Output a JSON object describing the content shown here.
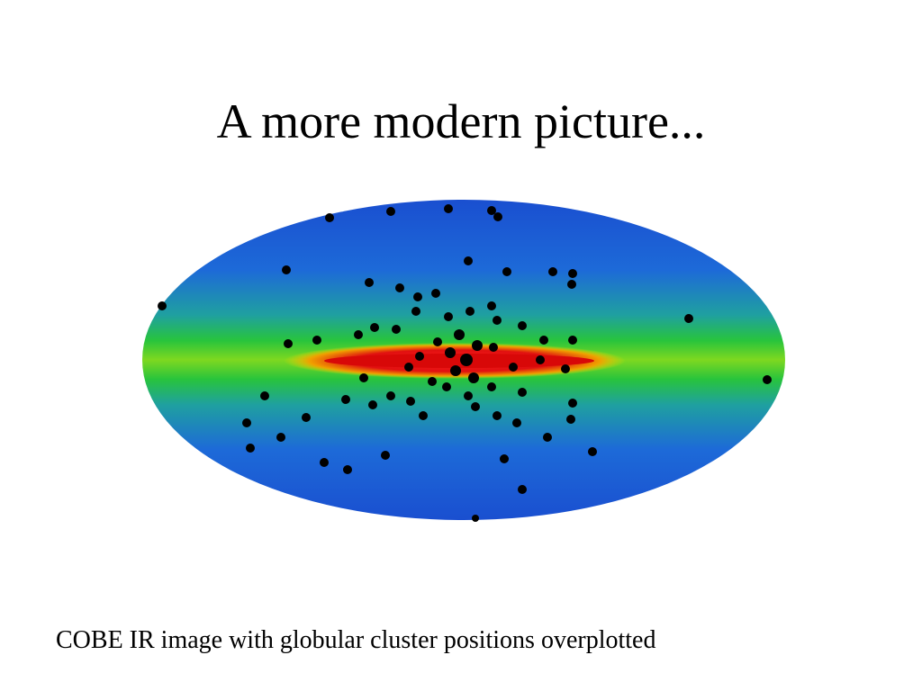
{
  "title": "A more modern picture...",
  "caption": "COBE IR image with globular cluster positions overplotted"
}
